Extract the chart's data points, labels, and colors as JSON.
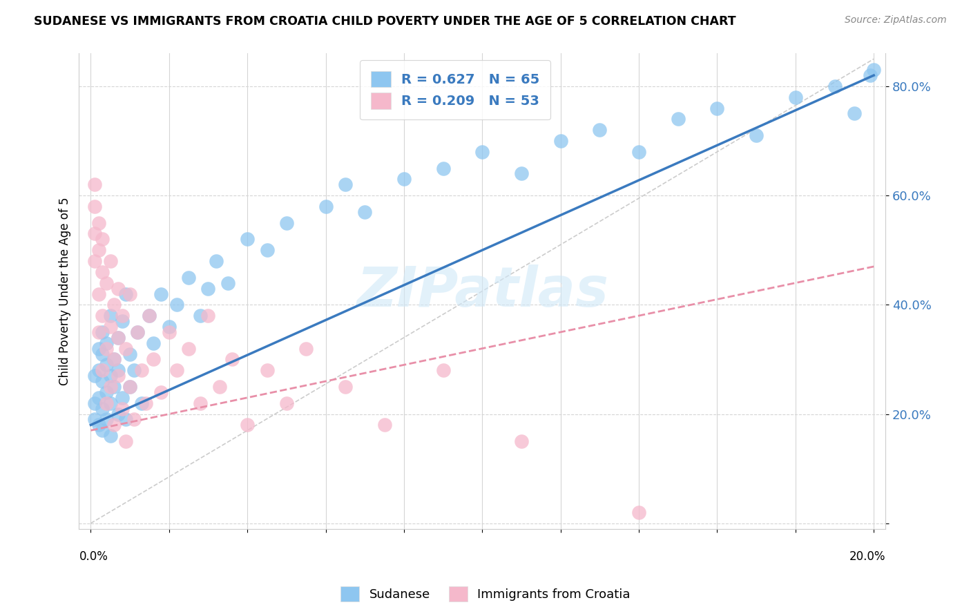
{
  "title": "SUDANESE VS IMMIGRANTS FROM CROATIA CHILD POVERTY UNDER THE AGE OF 5 CORRELATION CHART",
  "source": "Source: ZipAtlas.com",
  "ylabel": "Child Poverty Under the Age of 5",
  "legend1_label": "Sudanese",
  "legend2_label": "Immigrants from Croatia",
  "R1": 0.627,
  "N1": 65,
  "R2": 0.209,
  "N2": 53,
  "color_blue": "#8ec6f0",
  "color_pink": "#f5b8cb",
  "trend_blue": "#3a7abf",
  "trend_pink": "#e88fa8",
  "ref_line_color": "#cccccc",
  "watermark": "ZIPatlas",
  "blue_trend_x0": 0.0,
  "blue_trend_y0": 0.18,
  "blue_trend_x1": 0.2,
  "blue_trend_y1": 0.82,
  "pink_trend_x0": 0.0,
  "pink_trend_y0": 0.17,
  "pink_trend_x1": 0.2,
  "pink_trend_y1": 0.47,
  "xmin": 0.0,
  "xmax": 0.2,
  "ymin": 0.0,
  "ymax": 0.85,
  "ytick_vals": [
    0.0,
    0.2,
    0.4,
    0.6,
    0.8
  ],
  "ytick_labels": [
    "",
    "20.0%",
    "40.0%",
    "60.0%",
    "80.0%"
  ],
  "sudanese_x": [
    0.001,
    0.001,
    0.001,
    0.002,
    0.002,
    0.002,
    0.002,
    0.003,
    0.003,
    0.003,
    0.003,
    0.003,
    0.004,
    0.004,
    0.004,
    0.004,
    0.005,
    0.005,
    0.005,
    0.005,
    0.006,
    0.006,
    0.007,
    0.007,
    0.007,
    0.008,
    0.008,
    0.009,
    0.009,
    0.01,
    0.01,
    0.011,
    0.012,
    0.013,
    0.015,
    0.016,
    0.018,
    0.02,
    0.022,
    0.025,
    0.028,
    0.03,
    0.032,
    0.035,
    0.04,
    0.045,
    0.05,
    0.06,
    0.065,
    0.07,
    0.08,
    0.09,
    0.1,
    0.11,
    0.12,
    0.13,
    0.14,
    0.15,
    0.16,
    0.17,
    0.18,
    0.19,
    0.195,
    0.199,
    0.2
  ],
  "sudanese_y": [
    0.22,
    0.27,
    0.19,
    0.23,
    0.28,
    0.18,
    0.32,
    0.21,
    0.26,
    0.31,
    0.17,
    0.35,
    0.24,
    0.29,
    0.19,
    0.33,
    0.22,
    0.27,
    0.16,
    0.38,
    0.25,
    0.3,
    0.2,
    0.34,
    0.28,
    0.23,
    0.37,
    0.19,
    0.42,
    0.25,
    0.31,
    0.28,
    0.35,
    0.22,
    0.38,
    0.33,
    0.42,
    0.36,
    0.4,
    0.45,
    0.38,
    0.43,
    0.48,
    0.44,
    0.52,
    0.5,
    0.55,
    0.58,
    0.62,
    0.57,
    0.63,
    0.65,
    0.68,
    0.64,
    0.7,
    0.72,
    0.68,
    0.74,
    0.76,
    0.71,
    0.78,
    0.8,
    0.75,
    0.82,
    0.83
  ],
  "croatia_x": [
    0.001,
    0.001,
    0.001,
    0.001,
    0.002,
    0.002,
    0.002,
    0.002,
    0.003,
    0.003,
    0.003,
    0.003,
    0.004,
    0.004,
    0.004,
    0.005,
    0.005,
    0.005,
    0.006,
    0.006,
    0.006,
    0.007,
    0.007,
    0.007,
    0.008,
    0.008,
    0.009,
    0.009,
    0.01,
    0.01,
    0.011,
    0.012,
    0.013,
    0.014,
    0.015,
    0.016,
    0.018,
    0.02,
    0.022,
    0.025,
    0.028,
    0.03,
    0.033,
    0.036,
    0.04,
    0.045,
    0.05,
    0.055,
    0.065,
    0.075,
    0.09,
    0.11,
    0.14
  ],
  "croatia_y": [
    0.53,
    0.58,
    0.48,
    0.62,
    0.55,
    0.42,
    0.5,
    0.35,
    0.46,
    0.38,
    0.28,
    0.52,
    0.32,
    0.44,
    0.22,
    0.36,
    0.25,
    0.48,
    0.3,
    0.4,
    0.18,
    0.34,
    0.27,
    0.43,
    0.21,
    0.38,
    0.15,
    0.32,
    0.25,
    0.42,
    0.19,
    0.35,
    0.28,
    0.22,
    0.38,
    0.3,
    0.24,
    0.35,
    0.28,
    0.32,
    0.22,
    0.38,
    0.25,
    0.3,
    0.18,
    0.28,
    0.22,
    0.32,
    0.25,
    0.18,
    0.28,
    0.15,
    0.02
  ]
}
